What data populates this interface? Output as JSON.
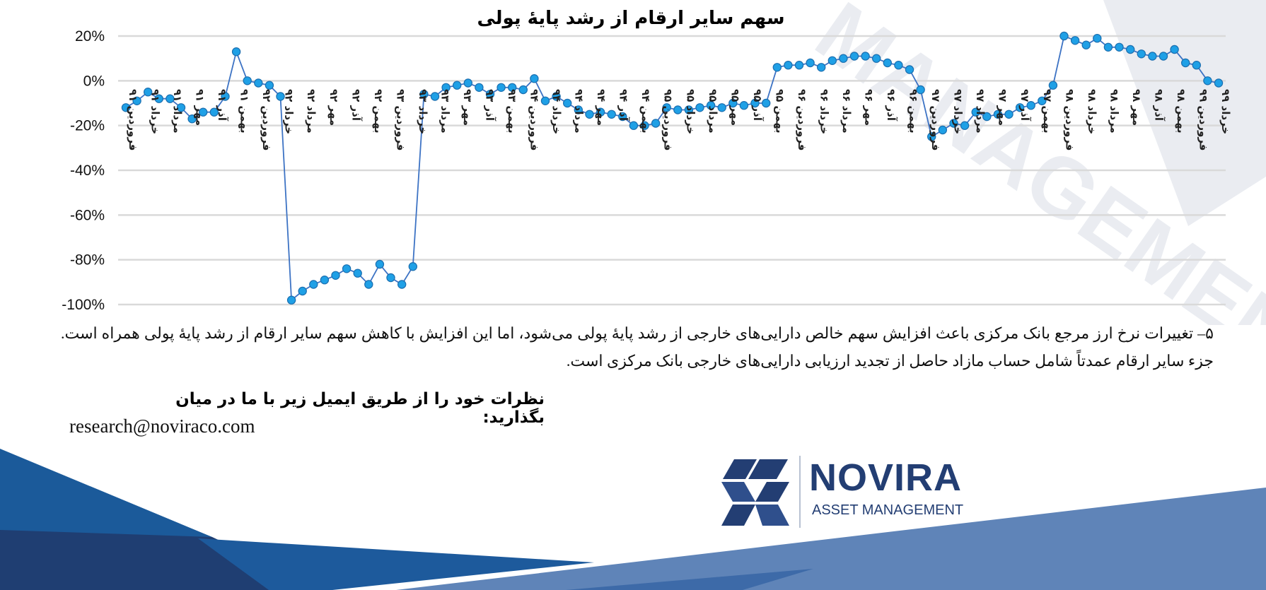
{
  "chart_data": {
    "type": "line",
    "title": "سهم سایر ارقام از رشد پایهٔ پولی",
    "xlabel": "",
    "ylabel": "",
    "ylim": [
      -100,
      20
    ],
    "y_ticks": [
      "20%",
      "0%",
      "-20%",
      "-40%",
      "-60%",
      "-80%",
      "-100%"
    ],
    "grid": true,
    "legend": "none",
    "series_color": "#1fa0e6",
    "line_color": "#3d73c4",
    "x_tick_labels": [
      "فروردین ۹۱",
      "خرداد ۹۱",
      "مرداد ۹۱",
      "مهر ۹۱",
      "آذر ۹۱",
      "بهمن ۹۱",
      "فروردین ۹۲",
      "خرداد ۹۲",
      "مرداد ۹۲",
      "مهر ۹۲",
      "آذر ۹۲",
      "بهمن ۹۲",
      "فروردین ۹۳",
      "خرداد ۹۳",
      "مرداد ۹۳",
      "مهر ۹۳",
      "آذر ۹۳",
      "بهمن ۹۳",
      "فروردین ۹۴",
      "خرداد ۹۴",
      "مرداد ۹۴",
      "مهر ۹۴",
      "آذر ۹۴",
      "بهمن ۹۴",
      "فروردین ۹۵",
      "خرداد ۹۵",
      "مرداد ۹۵",
      "مهر ۹۵",
      "آذر ۹۵",
      "بهمن ۹۵",
      "فروردین ۹۶",
      "خرداد ۹۶",
      "مرداد ۹۶",
      "مهر ۹۶",
      "آذر ۹۶",
      "بهمن ۹۶",
      "فروردین ۹۷",
      "خرداد ۹۷",
      "مرداد ۹۷",
      "مهر ۹۷",
      "آذر ۹۷",
      "بهمن ۹۷",
      "فروردین ۹۸",
      "خرداد ۹۸",
      "مرداد ۹۸",
      "مهر ۹۸",
      "آذر ۹۸",
      "بهمن ۹۸",
      "فروردین ۹۹",
      "خرداد ۹۹"
    ],
    "values": [
      -12,
      -9,
      -5,
      -8,
      -8,
      -12,
      -17,
      -14,
      -14,
      -7,
      13,
      0,
      -1,
      -2,
      -7,
      -98,
      -94,
      -91,
      -89,
      -87,
      -84,
      -86,
      -91,
      -82,
      -88,
      -91,
      -83,
      -6,
      -7,
      -3,
      -2,
      -1,
      -3,
      -6,
      -3,
      -3,
      -4,
      1,
      -9,
      -7,
      -10,
      -13,
      -15,
      -14,
      -15,
      -16,
      -20,
      -20,
      -19,
      -12,
      -13,
      -13,
      -12,
      -11,
      -12,
      -10,
      -11,
      -10,
      -10,
      6,
      7,
      7,
      8,
      6,
      9,
      10,
      11,
      11,
      10,
      8,
      7,
      5,
      -4,
      -25,
      -22,
      -19,
      -20,
      -14,
      -16,
      -15,
      -15,
      -12,
      -11,
      -9,
      -2,
      20,
      18,
      16,
      19,
      15,
      15,
      14,
      12,
      11,
      11,
      14,
      8,
      7,
      0,
      -1
    ]
  },
  "text": {
    "description": "۵– تغییرات نرخ ارز مرجع بانک مرکزی باعث افزایش سهم خالص دارایی‌های خارجی از رشد پایهٔ پولی می‌شود، اما این افزایش با کاهش سهم سایر ارقام از رشد پایهٔ پولی همراه است. جزء سایر ارقام عمدتاً شامل حساب مازاد حاصل از تجدید ارزیابی دارایی‌های خارجی بانک مرکزی است.",
    "feedback_heading": "نظرات خود را از طریق ایمیل زیر با ما در میان بگذارید:",
    "email": "research@noviraco.com"
  },
  "brand": {
    "name": "NOVIRA",
    "subtitle": "ASSET MANAGEMENT",
    "watermark_text": "MANAGEMENT",
    "colors": {
      "navy": "#233e73",
      "blue": "#1b5a9a",
      "light_blue": "#5f84b8"
    }
  }
}
